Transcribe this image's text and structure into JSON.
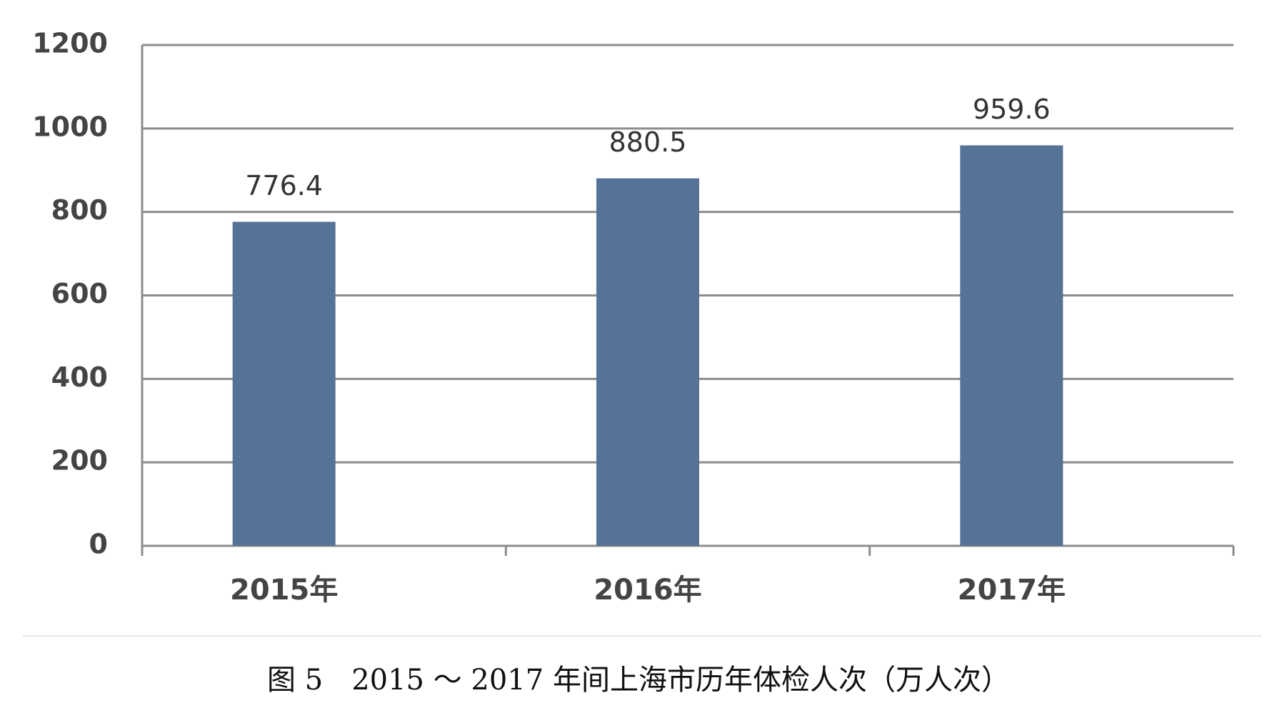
{
  "chart_data": {
    "type": "bar",
    "caption": "图 5　2015 ～ 2017 年间上海市历年体检人次（万人次）",
    "categories": [
      "2015年",
      "2016年",
      "2017年"
    ],
    "values": [
      776.4,
      880.5,
      959.6
    ],
    "color": "#557297",
    "ylim": [
      0,
      1200
    ],
    "yticks": [
      0,
      200,
      400,
      600,
      800,
      1000,
      1200
    ],
    "grid": true
  }
}
